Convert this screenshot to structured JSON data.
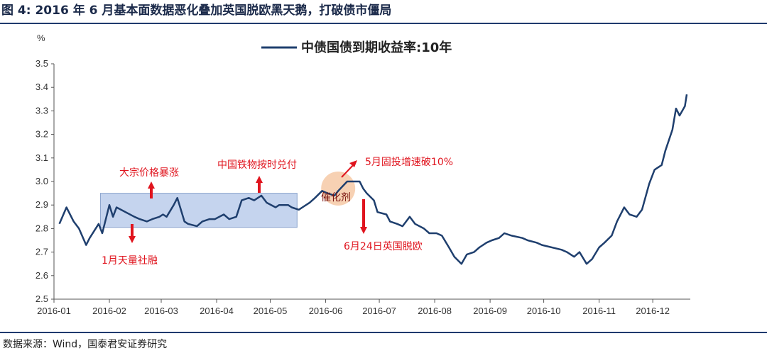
{
  "figure_title": "图 4:  2016 年 6 月基本面数据恶化叠加英国脱欧黑天鹅，打破债市僵局",
  "source": "数据来源：Wind，国泰君安证券研究",
  "colors": {
    "line": "#1f3f6e",
    "band": "#c5d4ee",
    "band_border": "#8aa3cc",
    "annotation": "#e0141e",
    "circle": "#f6c9a6"
  },
  "chart_data": {
    "type": "line",
    "unit_label": "%",
    "legend": "中债国债到期收益率:10年",
    "legend_position": "top-center",
    "grid": false,
    "ylim": [
      2.5,
      3.5
    ],
    "yticks": [
      "2.5",
      "2.6",
      "2.7",
      "2.8",
      "2.9",
      "3.0",
      "3.1",
      "3.2",
      "3.3",
      "3.4",
      "3.5"
    ],
    "xticks": [
      "2016-01",
      "2016-02",
      "2016-03",
      "2016-04",
      "2016-05",
      "2016-06",
      "2016-07",
      "2016-08",
      "2016-09",
      "2016-10",
      "2016-11",
      "2016-12"
    ],
    "series": [
      {
        "name": "中债国债到期收益率:10年",
        "x": [
          "2016-01-04",
          "2016-01-08",
          "2016-01-12",
          "2016-01-15",
          "2016-01-19",
          "2016-01-21",
          "2016-01-26",
          "2016-01-28",
          "2016-02-01",
          "2016-02-03",
          "2016-02-05",
          "2016-02-15",
          "2016-02-18",
          "2016-02-22",
          "2016-02-25",
          "2016-02-29",
          "2016-03-02",
          "2016-03-04",
          "2016-03-08",
          "2016-03-10",
          "2016-03-14",
          "2016-03-16",
          "2016-03-21",
          "2016-03-24",
          "2016-03-28",
          "2016-03-31",
          "2016-04-05",
          "2016-04-08",
          "2016-04-12",
          "2016-04-15",
          "2016-04-19",
          "2016-04-22",
          "2016-04-26",
          "2016-04-29",
          "2016-05-04",
          "2016-05-06",
          "2016-05-11",
          "2016-05-13",
          "2016-05-17",
          "2016-05-19",
          "2016-05-23",
          "2016-05-26",
          "2016-05-30",
          "2016-06-02",
          "2016-06-06",
          "2016-06-08",
          "2016-06-13",
          "2016-06-16",
          "2016-06-20",
          "2016-06-22",
          "2016-06-24",
          "2016-06-28",
          "2016-06-30",
          "2016-07-05",
          "2016-07-07",
          "2016-07-11",
          "2016-07-14",
          "2016-07-18",
          "2016-07-21",
          "2016-07-26",
          "2016-07-29",
          "2016-08-02",
          "2016-08-05",
          "2016-08-09",
          "2016-08-12",
          "2016-08-16",
          "2016-08-19",
          "2016-08-23",
          "2016-08-26",
          "2016-08-30",
          "2016-09-02",
          "2016-09-06",
          "2016-09-09",
          "2016-09-13",
          "2016-09-19",
          "2016-09-22",
          "2016-09-27",
          "2016-09-30",
          "2016-10-11",
          "2016-10-14",
          "2016-10-18",
          "2016-10-21",
          "2016-10-25",
          "2016-10-28",
          "2016-11-01",
          "2016-11-04",
          "2016-11-08",
          "2016-11-11",
          "2016-11-15",
          "2016-11-18",
          "2016-11-22",
          "2016-11-25",
          "2016-11-29",
          "2016-12-02",
          "2016-12-06",
          "2016-12-08",
          "2016-12-12",
          "2016-12-14",
          "2016-12-16",
          "2016-12-19",
          "2016-12-20"
        ],
        "values": [
          2.82,
          2.89,
          2.83,
          2.8,
          2.73,
          2.76,
          2.82,
          2.78,
          2.9,
          2.85,
          2.89,
          2.85,
          2.84,
          2.83,
          2.84,
          2.85,
          2.86,
          2.85,
          2.9,
          2.93,
          2.83,
          2.82,
          2.81,
          2.83,
          2.84,
          2.84,
          2.86,
          2.84,
          2.85,
          2.92,
          2.93,
          2.92,
          2.94,
          2.91,
          2.89,
          2.9,
          2.9,
          2.89,
          2.88,
          2.89,
          2.91,
          2.93,
          2.96,
          2.95,
          2.94,
          2.96,
          3.0,
          3.0,
          3.0,
          2.97,
          2.95,
          2.92,
          2.87,
          2.86,
          2.83,
          2.82,
          2.81,
          2.85,
          2.82,
          2.8,
          2.78,
          2.78,
          2.77,
          2.72,
          2.68,
          2.65,
          2.69,
          2.7,
          2.72,
          2.74,
          2.75,
          2.76,
          2.78,
          2.77,
          2.76,
          2.75,
          2.74,
          2.73,
          2.71,
          2.7,
          2.68,
          2.7,
          2.65,
          2.67,
          2.72,
          2.74,
          2.77,
          2.83,
          2.89,
          2.86,
          2.85,
          2.88,
          2.99,
          3.05,
          3.07,
          3.13,
          3.22,
          3.31,
          3.28,
          3.32,
          3.37
        ]
      }
    ],
    "annotations": [
      {
        "text": "大宗价格暴涨",
        "arrow": "up"
      },
      {
        "text": "中国铁物按时兑付",
        "arrow": "up"
      },
      {
        "text": "1月天量社融",
        "arrow": "down"
      },
      {
        "text": "5月固投增速破10%",
        "arrow": "up"
      },
      {
        "text": "6月24日英国脱欧",
        "arrow": "down"
      },
      {
        "text": "催化剂",
        "arrow": "none"
      }
    ]
  }
}
